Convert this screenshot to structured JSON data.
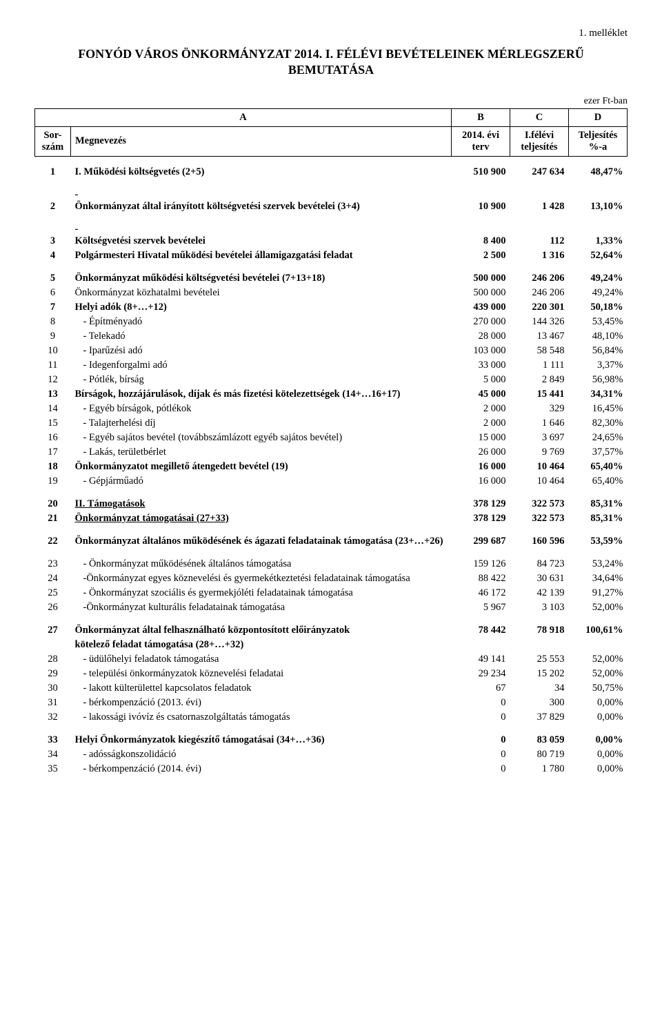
{
  "attachment": "1. melléklet",
  "title_l1": "FONYÓD VÁROS ÖNKORMÁNYZAT 2014. I. FÉLÉVI BEVÉTELEINEK MÉRLEGSZERŰ",
  "title_l2": "BEMUTATÁSA",
  "unit": "ezer Ft-ban",
  "head": {
    "a": "A",
    "b": "B",
    "c": "C",
    "d": "D",
    "sor1": "Sor-",
    "sor2": "szám",
    "meg": "Megnevezés",
    "b1": "2014. évi",
    "b2": "terv",
    "c1": "I.félévi",
    "c2": "teljesítés",
    "d1": "Teljesítés",
    "d2": "%-a"
  },
  "rows": [
    {
      "n": "1",
      "t": "I. Működési költségvetés (2+5)",
      "b": "510 900",
      "c": "247 634",
      "d": "48,47%",
      "bold": true,
      "break": true
    },
    {
      "n": "2",
      "t": "-\nÖnkormányzat által irányított költségvetési szervek bevételei (3+4)",
      "b": "10 900",
      "c": "1 428",
      "d": "13,10%",
      "bold": true,
      "break": true,
      "multiline": true
    },
    {
      "n": "3",
      "t": "-\nKöltségvetési szervek bevételei",
      "b": "8 400",
      "c": "112",
      "d": "1,33%",
      "bold": true,
      "break": true,
      "multiline": true
    },
    {
      "n": "4",
      "t": "Polgármesteri Hivatal működési bevételei államigazgatási feladat",
      "b": "2 500",
      "c": "1 316",
      "d": "52,64%",
      "bold": true
    },
    {
      "n": "5",
      "t": "Önkormányzat működési költségvetési bevételei (7+13+18)",
      "b": "500 000",
      "c": "246 206",
      "d": "49,24%",
      "bold": true,
      "break": true
    },
    {
      "n": "6",
      "t": "Önkormányzat közhatalmi bevételei",
      "b": "500 000",
      "c": "246 206",
      "d": "49,24%"
    },
    {
      "n": "7",
      "t": "Helyi adók (8+…+12)",
      "b": "439 000",
      "c": "220 301",
      "d": "50,18%",
      "bold": true
    },
    {
      "n": "8",
      "t": " - Építményadó",
      "b": "270 000",
      "c": "144 326",
      "d": "53,45%",
      "indent": 1
    },
    {
      "n": "9",
      "t": " - Telekadó",
      "b": "28 000",
      "c": "13 467",
      "d": "48,10%",
      "indent": 1
    },
    {
      "n": "10",
      "t": " - Iparűzési adó",
      "b": "103 000",
      "c": "58 548",
      "d": "56,84%",
      "indent": 1
    },
    {
      "n": "11",
      "t": " - Idegenforgalmi adó",
      "b": "33 000",
      "c": "1 111",
      "d": "3,37%",
      "indent": 1
    },
    {
      "n": "12",
      "t": " - Pótlék, bírság",
      "b": "5 000",
      "c": "2 849",
      "d": "56,98%",
      "indent": 1
    },
    {
      "n": "13",
      "t": "Bírságok, hozzájárulások, díjak  és más fizetési kötelezettségek (14+…16+17)",
      "b": "45 000",
      "c": "15 441",
      "d": "34,31%",
      "bold": true
    },
    {
      "n": "14",
      "t": " - Egyéb bírságok, pótlékok",
      "b": "2 000",
      "c": "329",
      "d": "16,45%",
      "indent": 1
    },
    {
      "n": "15",
      "t": " - Talajterhelési díj",
      "b": "2 000",
      "c": "1 646",
      "d": "82,30%",
      "indent": 1
    },
    {
      "n": "16",
      "t": " - Egyéb sajátos bevétel (továbbszámlázott egyéb sajátos bevétel)",
      "b": "15 000",
      "c": "3 697",
      "d": "24,65%",
      "indent": 1
    },
    {
      "n": "17",
      "t": " - Lakás, területbérlet",
      "b": "26 000",
      "c": "9 769",
      "d": "37,57%",
      "indent": 1
    },
    {
      "n": "18",
      "t": "Önkormányzatot megillető átengedett bevétel (19)",
      "b": "16 000",
      "c": "10 464",
      "d": "65,40%",
      "bold": true
    },
    {
      "n": "19",
      "t": " - Gépjárműadó",
      "b": "16 000",
      "c": "10 464",
      "d": "65,40%",
      "indent": 1
    },
    {
      "n": "20",
      "t": "II. Támogatások",
      "b": "378 129",
      "c": "322 573",
      "d": "85,31%",
      "bold": true,
      "underline": true,
      "break": true
    },
    {
      "n": "21",
      "t": "Önkormányzat támogatásai (27+33)",
      "b": "378 129",
      "c": "322 573",
      "d": "85,31%",
      "bold": true,
      "underline": true
    },
    {
      "n": "22",
      "t": "Önkormányzat általános működésének és ágazati feladatainak támogatása (23+…+26)",
      "b": "299 687",
      "c": "160 596",
      "d": "53,59%",
      "bold": true,
      "break": true,
      "multiline": true
    },
    {
      "n": "23",
      "t": " - Önkormányzat működésének általános támogatása",
      "b": "159 126",
      "c": "84 723",
      "d": "53,24%",
      "indent": 1,
      "break": true
    },
    {
      "n": "24",
      "t": " -Önkormányzat egyes köznevelési és gyermekétkeztetési feladatainak támogatása",
      "b": "88 422",
      "c": "30 631",
      "d": "34,64%",
      "indent": 1
    },
    {
      "n": "25",
      "t": " - Önkormányzat szociális és gyermekjóléti feladatainak támogatása",
      "b": "46 172",
      "c": "42 139",
      "d": "91,27%",
      "indent": 1
    },
    {
      "n": "26",
      "t": " -Önkormányzat kulturális feladatainak támogatása",
      "b": "5 967",
      "c": "3 103",
      "d": "52,00%",
      "indent": 1
    },
    {
      "n": "27",
      "t": "Önkormányzat által felhasználható központosított előirányzatok",
      "b": "78 442",
      "c": "78 918",
      "d": "100,61%",
      "bold": true,
      "break": true
    },
    {
      "n": "",
      "t": "kötelező feladat támogatása (28+…+32)",
      "b": "",
      "c": "",
      "d": "",
      "bold": true
    },
    {
      "n": "28",
      "t": " - üdülőhelyi feladatok támogatása",
      "b": "49 141",
      "c": "25 553",
      "d": "52,00%",
      "indent": 1
    },
    {
      "n": "29",
      "t": " - települési önkormányzatok köznevelési feladatai",
      "b": "29 234",
      "c": "15 202",
      "d": "52,00%",
      "indent": 1
    },
    {
      "n": "30",
      "t": " - lakott külterülettel kapcsolatos feladatok",
      "b": "67",
      "c": "34",
      "d": "50,75%",
      "indent": 1
    },
    {
      "n": "31",
      "t": " - bérkompenzáció (2013. évi)",
      "b": "0",
      "c": "300",
      "d": "0,00%",
      "indent": 1
    },
    {
      "n": "32",
      "t": " - lakossági ivóvíz és csatornaszolgáltatás támogatás",
      "b": "0",
      "c": "37 829",
      "d": "0,00%",
      "indent": 1
    },
    {
      "n": "33",
      "t": "Helyi Önkormányzatok kiegészítő támogatásai (34+…+36)",
      "b": "0",
      "c": "83 059",
      "d": "0,00%",
      "bold": true,
      "break": true
    },
    {
      "n": "34",
      "t": " - adósságkonszolidáció",
      "b": "0",
      "c": "80 719",
      "d": "0,00%",
      "indent": 1
    },
    {
      "n": "35",
      "t": " - bérkompenzáció (2014. évi)",
      "b": "0",
      "c": "1 780",
      "d": "0,00%",
      "indent": 1
    }
  ]
}
